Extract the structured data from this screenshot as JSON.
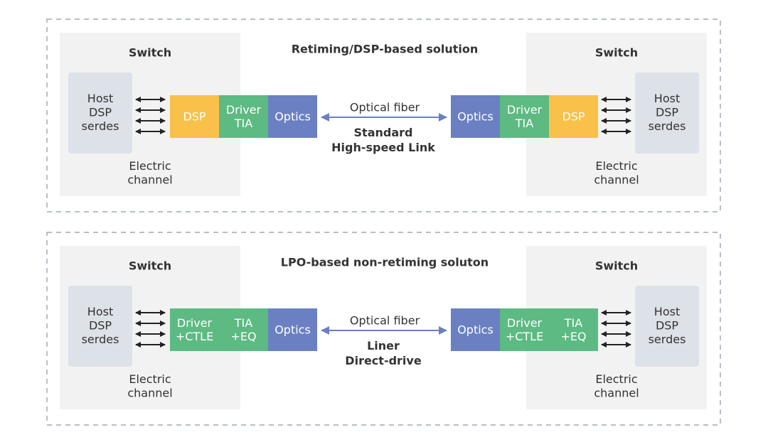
{
  "panels": [
    {
      "title": "Retiming/DSP-based solution",
      "left": {
        "switch": "Switch",
        "host": [
          "Host",
          "DSP",
          "serdes"
        ],
        "channel": [
          "Electric",
          "channel"
        ],
        "blocks": [
          {
            "lines": [
              "DSP"
            ],
            "color": "#f9c04a"
          },
          {
            "lines": [
              "Driver",
              "TIA"
            ],
            "color": "#5cba82"
          },
          {
            "lines": [
              "Optics"
            ],
            "color": "#6b80c2"
          }
        ]
      },
      "right": {
        "switch": "Switch",
        "host": [
          "Host",
          "DSP",
          "serdes"
        ],
        "channel": [
          "Electric",
          "channel"
        ],
        "blocks": [
          {
            "lines": [
              "Optics"
            ],
            "color": "#6b80c2"
          },
          {
            "lines": [
              "Driver",
              "TIA"
            ],
            "color": "#5cba82"
          },
          {
            "lines": [
              "DSP"
            ],
            "color": "#f9c04a"
          }
        ]
      },
      "link": {
        "fiber": "Optical fiber",
        "label": [
          "Standard",
          "High-speed Link"
        ]
      }
    },
    {
      "title": "LPO-based non-retiming soluton",
      "left": {
        "switch": "Switch",
        "host": [
          "Host",
          "DSP",
          "serdes"
        ],
        "channel": [
          "Electric",
          "channel"
        ],
        "blocks": [
          {
            "lines": [
              "Driver",
              "+CTLE"
            ],
            "color": "#5cba82"
          },
          {
            "lines": [
              "TIA",
              "+EQ"
            ],
            "color": "#5cba82"
          },
          {
            "lines": [
              "Optics"
            ],
            "color": "#6b80c2"
          }
        ]
      },
      "right": {
        "switch": "Switch",
        "host": [
          "Host",
          "DSP",
          "serdes"
        ],
        "channel": [
          "Electric",
          "channel"
        ],
        "blocks": [
          {
            "lines": [
              "Optics"
            ],
            "color": "#6b80c2"
          },
          {
            "lines": [
              "Driver",
              "+CTLE"
            ],
            "color": "#5cba82"
          },
          {
            "lines": [
              "TIA",
              "+EQ"
            ],
            "color": "#5cba82"
          }
        ]
      },
      "link": {
        "fiber": "Optical fiber",
        "label": [
          "Liner",
          "Direct-drive"
        ]
      }
    }
  ]
}
